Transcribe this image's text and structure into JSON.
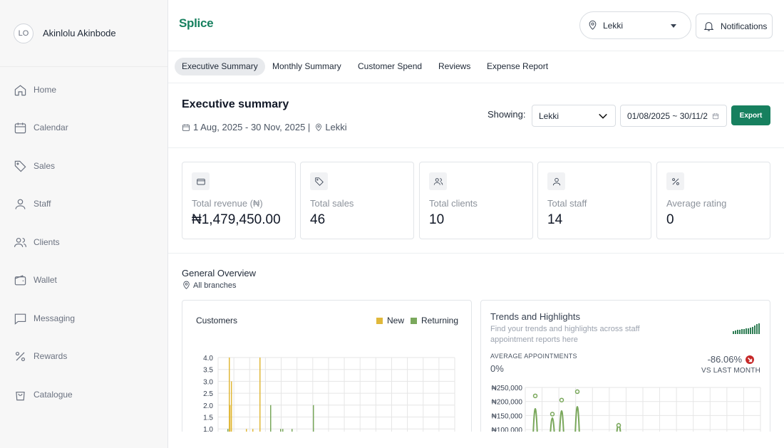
{
  "profile": {
    "initials": "LO",
    "name": "Akinlolu Akinbode"
  },
  "sidebar": {
    "items": [
      {
        "label": "Home",
        "icon": "home-icon"
      },
      {
        "label": "Calendar",
        "icon": "calendar-icon"
      },
      {
        "label": "Sales",
        "icon": "tag-icon"
      },
      {
        "label": "Staff",
        "icon": "user-icon"
      },
      {
        "label": "Clients",
        "icon": "users-icon"
      },
      {
        "label": "Wallet",
        "icon": "wallet-icon"
      },
      {
        "label": "Messaging",
        "icon": "message-icon"
      },
      {
        "label": "Rewards",
        "icon": "percent-icon"
      },
      {
        "label": "Catalogue",
        "icon": "bag-icon"
      }
    ]
  },
  "header": {
    "logo": "Splice",
    "location": "Lekki",
    "notifications_label": "Notifications"
  },
  "tabs": [
    "Executive Summary",
    "Monthly Summary",
    "Customer Spend",
    "Reviews",
    "Expense Report"
  ],
  "summary": {
    "title": "Executive summary",
    "date_range_text": "1 Aug, 2025 - 30 Nov, 2025 |",
    "location": "Lekki",
    "showing_label": "Showing:",
    "branch": "Lekki",
    "date_filter": "01/08/2025 ~ 30/11/2",
    "export_label": "Export"
  },
  "stats": [
    {
      "label": "Total revenue (₦)",
      "value": "₦1,479,450.00",
      "icon": "credit-card-icon"
    },
    {
      "label": "Total sales",
      "value": "46",
      "icon": "tag-icon"
    },
    {
      "label": "Total clients",
      "value": "10",
      "icon": "users-icon"
    },
    {
      "label": "Total staff",
      "value": "14",
      "icon": "user-icon"
    },
    {
      "label": "Average rating",
      "value": "0",
      "icon": "percent-icon"
    }
  ],
  "overview": {
    "title": "General Overview",
    "scope": "All branches"
  },
  "customers": {
    "title": "Customers",
    "legend": [
      {
        "name": "New",
        "color": "#e0b83a"
      },
      {
        "name": "Returning",
        "color": "#7aa85c"
      }
    ]
  },
  "trends": {
    "title": "Trends and Highlights",
    "description": "Find your trends and highlights across staff appointment reports here",
    "avg_label": "AVERAGE APPOINTMENTS",
    "avg_value": "0%",
    "change": "-86.06%",
    "change_label": "VS LAST MONTH"
  },
  "colors": {
    "accent": "#17805f",
    "new": "#e0b83a",
    "returning": "#7aa85c",
    "negative": "#c62828"
  },
  "chart_data": [
    {
      "type": "bar",
      "title": "Customers",
      "ylim": [
        1.0,
        4.0
      ],
      "yticks": [
        "4.0",
        "3.5",
        "3.0",
        "2.5",
        "2.0",
        "1.5",
        "1.0"
      ],
      "grid": true,
      "legend_position": "top-right",
      "series": [
        {
          "name": "New",
          "color": "#e0b83a",
          "values": [
            4,
            3,
            2,
            1,
            1,
            4
          ]
        },
        {
          "name": "Returning",
          "color": "#7aa85c",
          "values": [
            1,
            2,
            1,
            1,
            1,
            2
          ]
        }
      ]
    },
    {
      "type": "line",
      "title": "Trends and Highlights",
      "yticks": [
        "₦250,000",
        "₦200,000",
        "₦150,000",
        "₦100,000"
      ],
      "ylim": [
        100000,
        250000
      ],
      "grid": true,
      "series": [
        {
          "name": "",
          "color": "#7aa85c",
          "values": [
            220000,
            155000,
            205000,
            235000,
            115000
          ]
        }
      ]
    }
  ]
}
